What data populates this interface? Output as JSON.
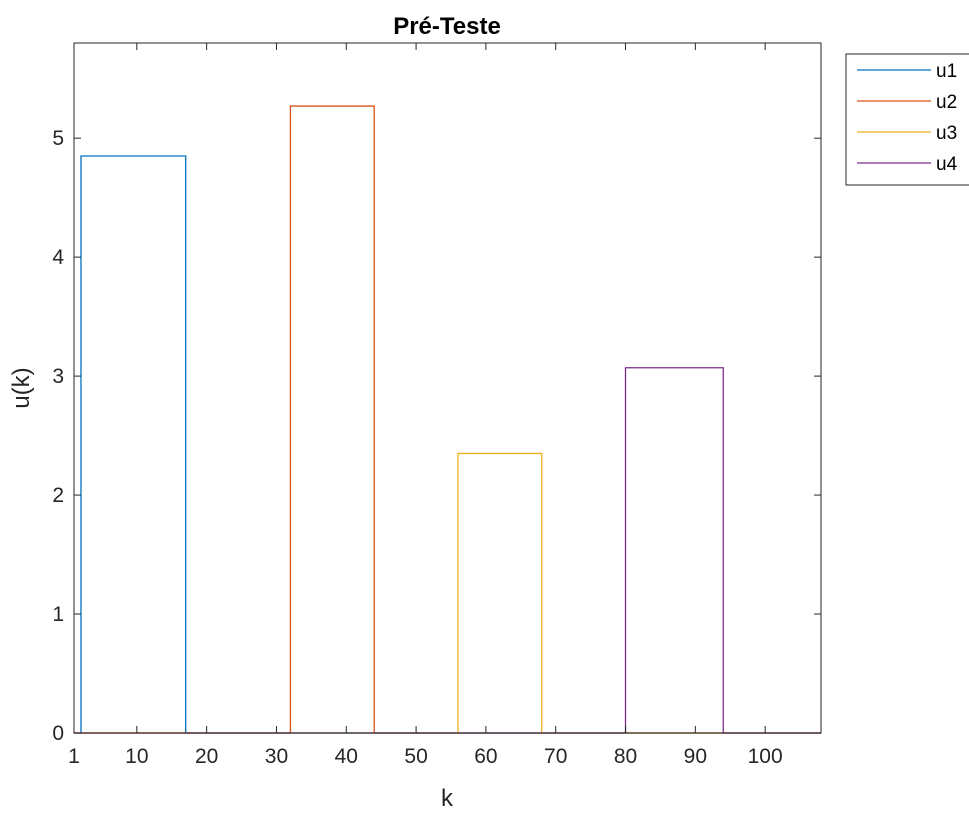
{
  "chart_data": {
    "type": "line",
    "title": "Pré-Teste",
    "xlabel": "k",
    "ylabel": "u(k)",
    "xlim": [
      1,
      108
    ],
    "ylim": [
      0,
      5.8
    ],
    "x_ticks": [
      1,
      10,
      20,
      30,
      40,
      50,
      60,
      70,
      80,
      90,
      100
    ],
    "y_ticks": [
      0,
      1,
      2,
      3,
      4,
      5
    ],
    "grid": false,
    "legend_position": "outside-top-right",
    "series": [
      {
        "name": "u1",
        "color": "#0072BD",
        "points": [
          [
            1,
            0
          ],
          [
            2,
            0
          ],
          [
            2,
            4.85
          ],
          [
            17,
            4.85
          ],
          [
            17,
            0
          ],
          [
            108,
            0
          ]
        ]
      },
      {
        "name": "u2",
        "color": "#D95319",
        "points": [
          [
            1,
            0
          ],
          [
            32,
            0
          ],
          [
            32,
            5.27
          ],
          [
            44,
            5.27
          ],
          [
            44,
            0
          ],
          [
            108,
            0
          ]
        ]
      },
      {
        "name": "u3",
        "color": "#EDB120",
        "points": [
          [
            1,
            0
          ],
          [
            56,
            0
          ],
          [
            56,
            2.35
          ],
          [
            68,
            2.35
          ],
          [
            68,
            0
          ],
          [
            108,
            0
          ]
        ]
      },
      {
        "name": "u4",
        "color": "#7E2F8E",
        "points": [
          [
            1,
            0
          ],
          [
            80,
            0
          ],
          [
            80,
            3.07
          ],
          [
            94,
            3.07
          ],
          [
            94,
            0
          ],
          [
            108,
            0
          ]
        ]
      }
    ]
  }
}
